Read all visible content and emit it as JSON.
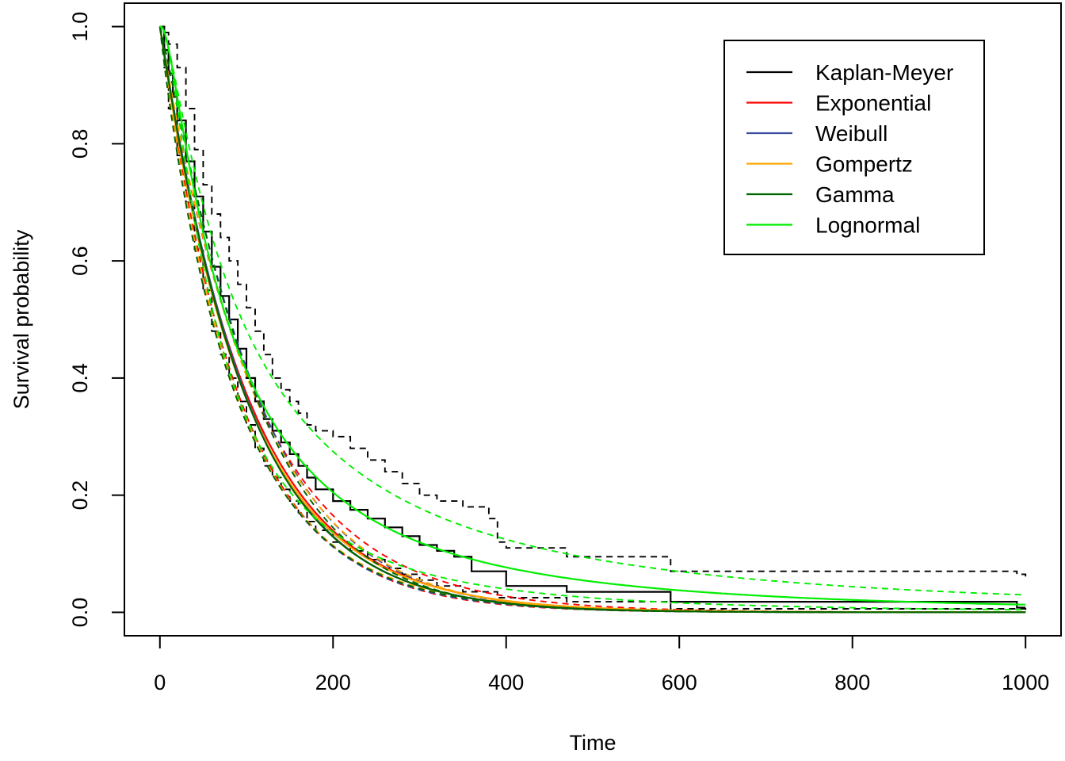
{
  "chart_data": {
    "type": "line",
    "title": "",
    "xlabel": "Time",
    "ylabel": "Survival probability",
    "xlim": [
      -41,
      1041
    ],
    "ylim": [
      -0.04,
      1.04
    ],
    "xticks": [
      "0",
      "200",
      "400",
      "600",
      "800",
      "1000"
    ],
    "yticks": [
      "0.0",
      "0.2",
      "0.4",
      "0.6",
      "0.8",
      "1.0"
    ],
    "grid": false,
    "legend": {
      "position": "top-right",
      "entries": [
        {
          "label": "Kaplan-Meyer",
          "color": "#000000"
        },
        {
          "label": "Exponential",
          "color": "#ff0000"
        },
        {
          "label": "Weibull",
          "color": "#3a4ba0"
        },
        {
          "label": "Gompertz",
          "color": "#ffa500"
        },
        {
          "label": "Gamma",
          "color": "#006400"
        },
        {
          "label": "Lognormal",
          "color": "#00ee00"
        }
      ]
    },
    "series": [
      {
        "name": "Kaplan-Meyer",
        "color": "#000000",
        "dash": "solid",
        "step": true,
        "x": [
          0,
          5,
          10,
          15,
          20,
          30,
          40,
          50,
          60,
          70,
          80,
          90,
          100,
          110,
          120,
          130,
          140,
          150,
          160,
          170,
          180,
          200,
          220,
          240,
          260,
          280,
          300,
          320,
          340,
          360,
          400,
          470,
          590,
          990,
          1000
        ],
        "y": [
          1.0,
          0.96,
          0.92,
          0.88,
          0.84,
          0.77,
          0.71,
          0.65,
          0.59,
          0.54,
          0.5,
          0.45,
          0.4,
          0.36,
          0.33,
          0.31,
          0.29,
          0.27,
          0.25,
          0.23,
          0.21,
          0.19,
          0.175,
          0.16,
          0.145,
          0.13,
          0.115,
          0.105,
          0.095,
          0.07,
          0.045,
          0.035,
          0.018,
          0.008,
          0.008
        ]
      },
      {
        "name": "Kaplan-Meyer upper",
        "color": "#000000",
        "dash": "dashed",
        "step": true,
        "x": [
          0,
          5,
          10,
          20,
          30,
          40,
          50,
          60,
          70,
          80,
          90,
          100,
          110,
          120,
          130,
          140,
          150,
          160,
          170,
          180,
          200,
          220,
          240,
          260,
          280,
          300,
          320,
          350,
          380,
          390,
          400,
          470,
          590,
          990,
          1000
        ],
        "y": [
          1.0,
          0.99,
          0.97,
          0.93,
          0.86,
          0.79,
          0.73,
          0.68,
          0.64,
          0.6,
          0.56,
          0.52,
          0.48,
          0.44,
          0.4,
          0.38,
          0.36,
          0.34,
          0.32,
          0.31,
          0.3,
          0.28,
          0.26,
          0.24,
          0.22,
          0.2,
          0.19,
          0.18,
          0.16,
          0.12,
          0.11,
          0.095,
          0.07,
          0.065,
          0.06
        ]
      },
      {
        "name": "Kaplan-Meyer lower",
        "color": "#000000",
        "dash": "dashed",
        "step": true,
        "x": [
          0,
          5,
          10,
          20,
          30,
          40,
          50,
          60,
          70,
          80,
          90,
          100,
          110,
          120,
          130,
          140,
          150,
          160,
          170,
          180,
          200,
          220,
          240,
          260,
          280,
          300,
          320,
          350,
          390,
          470,
          590,
          1000
        ],
        "y": [
          1.0,
          0.93,
          0.86,
          0.78,
          0.7,
          0.62,
          0.55,
          0.48,
          0.44,
          0.4,
          0.36,
          0.32,
          0.28,
          0.25,
          0.23,
          0.21,
          0.19,
          0.17,
          0.155,
          0.14,
          0.12,
          0.105,
          0.09,
          0.075,
          0.065,
          0.055,
          0.045,
          0.035,
          0.025,
          0.018,
          0.006,
          0.002
        ]
      },
      {
        "name": "Exponential",
        "color": "#ff0000",
        "dash": "solid",
        "model": "exp",
        "p": [
          0.00985,
          1
        ]
      },
      {
        "name": "Exponential upper",
        "color": "#ff0000",
        "dash": "dashed",
        "model": "exp",
        "p": [
          0.009,
          1
        ]
      },
      {
        "name": "Exponential lower",
        "color": "#ff0000",
        "dash": "dashed",
        "model": "exp",
        "p": [
          0.0109,
          1
        ]
      },
      {
        "name": "Weibull",
        "color": "#3a4ba0",
        "dash": "solid",
        "model": "weibull",
        "p": [
          100,
          1.03
        ]
      },
      {
        "name": "Weibull upper",
        "color": "#3a4ba0",
        "dash": "dashed",
        "model": "weibull",
        "p": [
          113,
          1.1
        ]
      },
      {
        "name": "Weibull lower",
        "color": "#3a4ba0",
        "dash": "dashed",
        "model": "weibull",
        "p": [
          89,
          0.97
        ]
      },
      {
        "name": "Gompertz",
        "color": "#ffa500",
        "dash": "solid",
        "model": "gompertz",
        "p": [
          0.0102,
          -0.0002
        ]
      },
      {
        "name": "Gompertz upper",
        "color": "#ffa500",
        "dash": "dashed",
        "model": "gompertz",
        "p": [
          0.0088,
          0.0006
        ]
      },
      {
        "name": "Gompertz lower",
        "color": "#ffa500",
        "dash": "dashed",
        "model": "gompertz",
        "p": [
          0.0115,
          -0.0006
        ]
      },
      {
        "name": "Gamma",
        "color": "#006400",
        "dash": "solid",
        "model": "weibull",
        "p": [
          99,
          1.02
        ]
      },
      {
        "name": "Gamma upper",
        "color": "#006400",
        "dash": "dashed",
        "model": "weibull",
        "p": [
          111,
          1.12
        ]
      },
      {
        "name": "Gamma lower",
        "color": "#006400",
        "dash": "dashed",
        "model": "weibull",
        "p": [
          88,
          0.95
        ]
      },
      {
        "name": "Lognormal",
        "color": "#00ee00",
        "dash": "solid",
        "model": "lognorm",
        "p": [
          4.35,
          1.15
        ]
      },
      {
        "name": "Lognormal upper",
        "color": "#00ee00",
        "dash": "dashed",
        "model": "lognorm",
        "p": [
          4.55,
          1.25
        ]
      },
      {
        "name": "Lognormal lower",
        "color": "#00ee00",
        "dash": "dashed",
        "model": "lognorm",
        "p": [
          4.15,
          1.05
        ]
      }
    ]
  }
}
